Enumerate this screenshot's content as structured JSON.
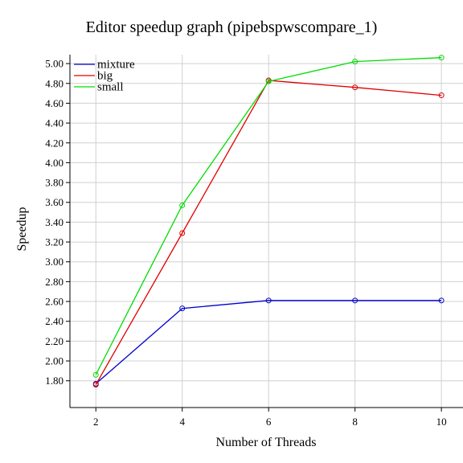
{
  "chart_data": {
    "type": "line",
    "title": "Editor speedup graph (pipebspwscompare_1)",
    "xlabel": "Number of Threads",
    "ylabel": "Speedup",
    "x": [
      2,
      4,
      6,
      8,
      10
    ],
    "xticks": [
      "2",
      "4",
      "6",
      "8",
      "10"
    ],
    "yticks": [
      "1.80",
      "2.00",
      "2.20",
      "2.40",
      "2.60",
      "2.80",
      "3.00",
      "3.20",
      "3.40",
      "3.60",
      "3.80",
      "4.00",
      "4.20",
      "4.40",
      "4.60",
      "4.80",
      "5.00"
    ],
    "xlim": [
      1.4,
      10.5
    ],
    "ylim": [
      1.53,
      5.09
    ],
    "grid": true,
    "legend_position": "top-left",
    "series": [
      {
        "name": "mixture",
        "color": "#0000cc",
        "values": [
          1.77,
          2.53,
          2.61,
          2.61,
          2.61
        ]
      },
      {
        "name": "big",
        "color": "#e00000",
        "values": [
          1.76,
          3.29,
          4.83,
          4.76,
          4.68
        ]
      },
      {
        "name": "small",
        "color": "#00dd00",
        "values": [
          1.86,
          3.57,
          4.82,
          5.02,
          5.06
        ]
      }
    ]
  }
}
